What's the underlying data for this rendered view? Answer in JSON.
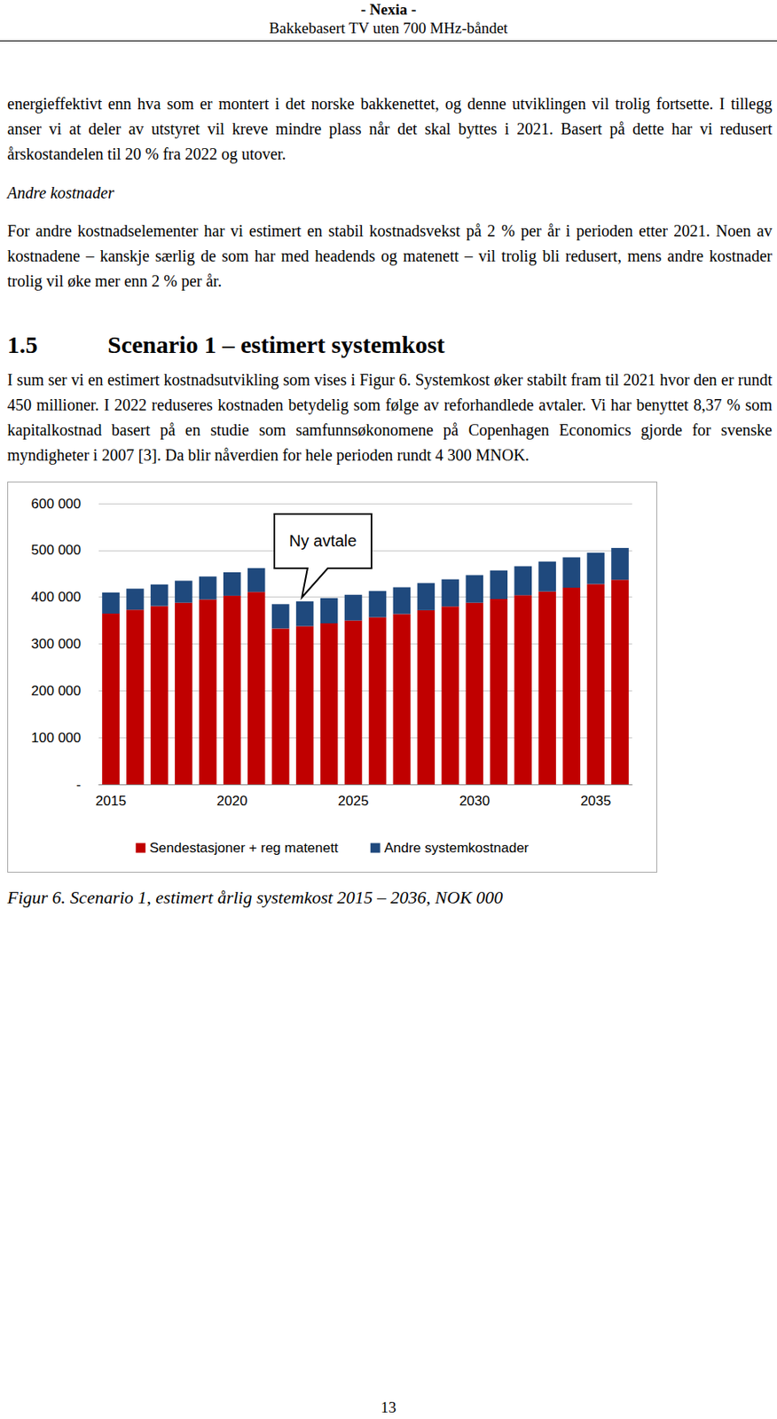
{
  "header": {
    "org": "- Nexia -",
    "title": "Bakkebasert TV uten 700 MHz-båndet"
  },
  "body": [
    {
      "kind": "paragraph",
      "text": "energieffektivt enn hva som er montert i det norske bakkenettet, og denne utviklingen vil trolig fortsette. I tillegg anser vi at deler av utstyret vil kreve mindre plass når det skal byttes i 2021. Basert på dette har vi redusert årskostandelen til 20 % fra 2022 og utover."
    },
    {
      "kind": "subheading",
      "text": "Andre kostnader"
    },
    {
      "kind": "paragraph",
      "text": "For andre kostnadselementer har vi estimert en stabil kostnadsvekst på 2 % per år i perioden etter 2021. Noen av kostnadene – kanskje særlig de som har med headends og matenett – vil trolig bli redusert, mens andre kostnader trolig vil øke mer enn 2 % per år."
    },
    {
      "kind": "heading",
      "number": "1.5",
      "text": "Scenario 1 – estimert systemkost"
    },
    {
      "kind": "paragraph",
      "text": "I sum ser vi en estimert kostnadsutvikling som vises i Figur 6. Systemkost øker stabilt fram til 2021 hvor den er rundt 450 millioner. I 2022 reduseres kostnaden betydelig som følge av reforhandlede avtaler. Vi har benyttet 8,37 % som kapitalkostnad basert på en studie som samfunnsøkonomene på Copenhagen Economics gjorde for svenske myndigheter i 2007 [3]. Da blir nåverdien for hele perioden rundt 4 300 MNOK."
    }
  ],
  "chart_data": {
    "type": "bar",
    "stacked": true,
    "grid": true,
    "legend": "bottom",
    "categories": [
      "2015",
      null,
      null,
      null,
      null,
      "2020",
      null,
      null,
      null,
      null,
      "2025",
      null,
      null,
      null,
      null,
      "2030",
      null,
      null,
      null,
      null,
      "2035",
      null
    ],
    "series": [
      {
        "name": "Sendestasjoner + reg matenett",
        "color": "#c00000",
        "values": [
          365000,
          373000,
          381000,
          388000,
          395000,
          403000,
          411000,
          333000,
          338000,
          344000,
          350000,
          357000,
          364000,
          372000,
          380000,
          388000,
          396000,
          404000,
          412000,
          420000,
          428000,
          437000
        ]
      },
      {
        "name": "Andre systemkostnader",
        "color": "#1f497d",
        "values": [
          45000,
          45000,
          46000,
          47000,
          49000,
          50000,
          51000,
          52000,
          53000,
          54000,
          55000,
          56000,
          57000,
          58000,
          58000,
          59000,
          61000,
          62000,
          64000,
          65000,
          67000,
          68000
        ]
      }
    ],
    "ylim": [
      0,
      600000
    ],
    "yticks": [
      {
        "value": 0,
        "label": "-"
      },
      {
        "value": 100000,
        "label": "100 000"
      },
      {
        "value": 200000,
        "label": "200 000"
      },
      {
        "value": 300000,
        "label": "300 000"
      },
      {
        "value": 400000,
        "label": "400 000"
      },
      {
        "value": 500000,
        "label": "500 000"
      },
      {
        "value": 600000,
        "label": "600 000"
      }
    ],
    "annotations": [
      {
        "text": "Ny avtale"
      }
    ]
  },
  "caption": "Figur 6. Scenario 1, estimert årlig systemkost 2015 – 2036, NOK 000",
  "page_number": "13"
}
